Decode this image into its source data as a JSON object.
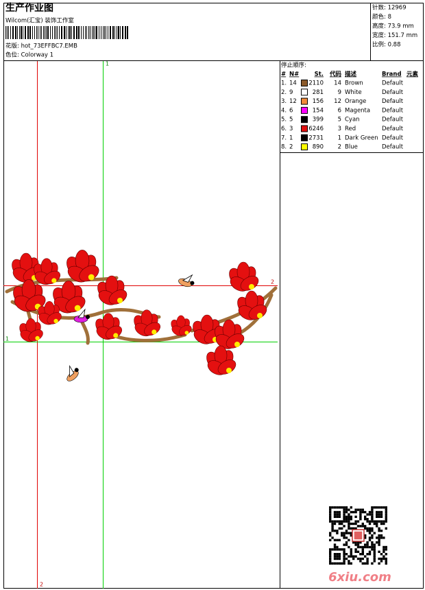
{
  "header": {
    "title": "生产作业图",
    "studio": "Wilcom(汇宝) 装饰工作室",
    "design_file": "花版: hot_73EFFBC7.EMB",
    "colorway": "色位: Colorway 1"
  },
  "stats": [
    "针数: 12969",
    "颜色: 8",
    "高度: 73.9 mm",
    "宽度: 151.7 mm",
    "比例: 0.88"
  ],
  "stop_sequence": {
    "title": "停止顺序:",
    "columns": [
      "#",
      "N#",
      "St.",
      "代码",
      "描述",
      "Brand",
      "元素"
    ],
    "rows": [
      {
        "index": "1.",
        "needle": 14,
        "stitches": 2110,
        "code": 14,
        "description": "Brown",
        "brand": "Default",
        "color": "#8b5a2b"
      },
      {
        "index": "2.",
        "needle": 9,
        "stitches": 281,
        "code": 9,
        "description": "White",
        "brand": "Default",
        "color": "#ffffff"
      },
      {
        "index": "3.",
        "needle": 12,
        "stitches": 156,
        "code": 12,
        "description": "Orange",
        "brand": "Default",
        "color": "#f08a3a"
      },
      {
        "index": "4.",
        "needle": 6,
        "stitches": 154,
        "code": 6,
        "description": "Magenta",
        "brand": "Default",
        "color": "#ff00ff"
      },
      {
        "index": "5.",
        "needle": 5,
        "stitches": 399,
        "code": 5,
        "description": "Cyan",
        "brand": "Default",
        "color": "#000000"
      },
      {
        "index": "6.",
        "needle": 3,
        "stitches": 6246,
        "code": 3,
        "description": "Red",
        "brand": "Default",
        "color": "#e01010"
      },
      {
        "index": "7.",
        "needle": 1,
        "stitches": 2731,
        "code": 1,
        "description": "Dark Green",
        "brand": "Default",
        "color": "#000000"
      },
      {
        "index": "8.",
        "needle": 2,
        "stitches": 890,
        "code": 2,
        "description": "Blue",
        "brand": "Default",
        "color": "#ffff00"
      }
    ]
  },
  "guides": {
    "vertical_green": "1",
    "horizontal_green": "1",
    "vertical_red": "2",
    "horizontal_red": "2"
  },
  "watermark": "6xiu.com"
}
